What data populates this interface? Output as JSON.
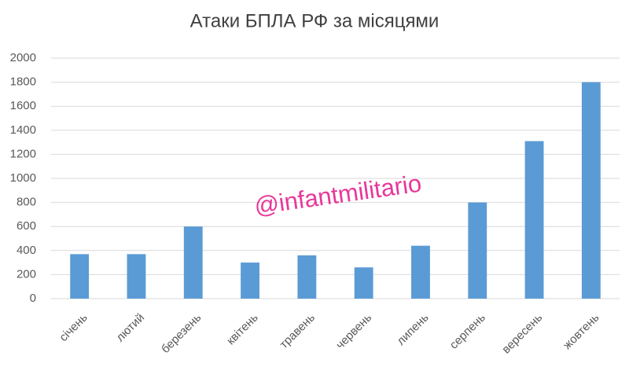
{
  "chart_data": {
    "type": "bar",
    "title": "Атаки БПЛА РФ за місяцями",
    "annotation": "@infantmilitario",
    "categories": [
      "січень",
      "лютий",
      "березень",
      "квітень",
      "травень",
      "червень",
      "липень",
      "серпень",
      "вересень",
      "жовтень"
    ],
    "values": [
      370,
      370,
      600,
      300,
      360,
      260,
      440,
      800,
      1310,
      1800
    ],
    "color": "#5b9bd5",
    "ylim": [
      0,
      2000
    ],
    "yticks": [
      0,
      200,
      400,
      600,
      800,
      1000,
      1200,
      1400,
      1600,
      1800,
      2000
    ],
    "grid": true
  }
}
